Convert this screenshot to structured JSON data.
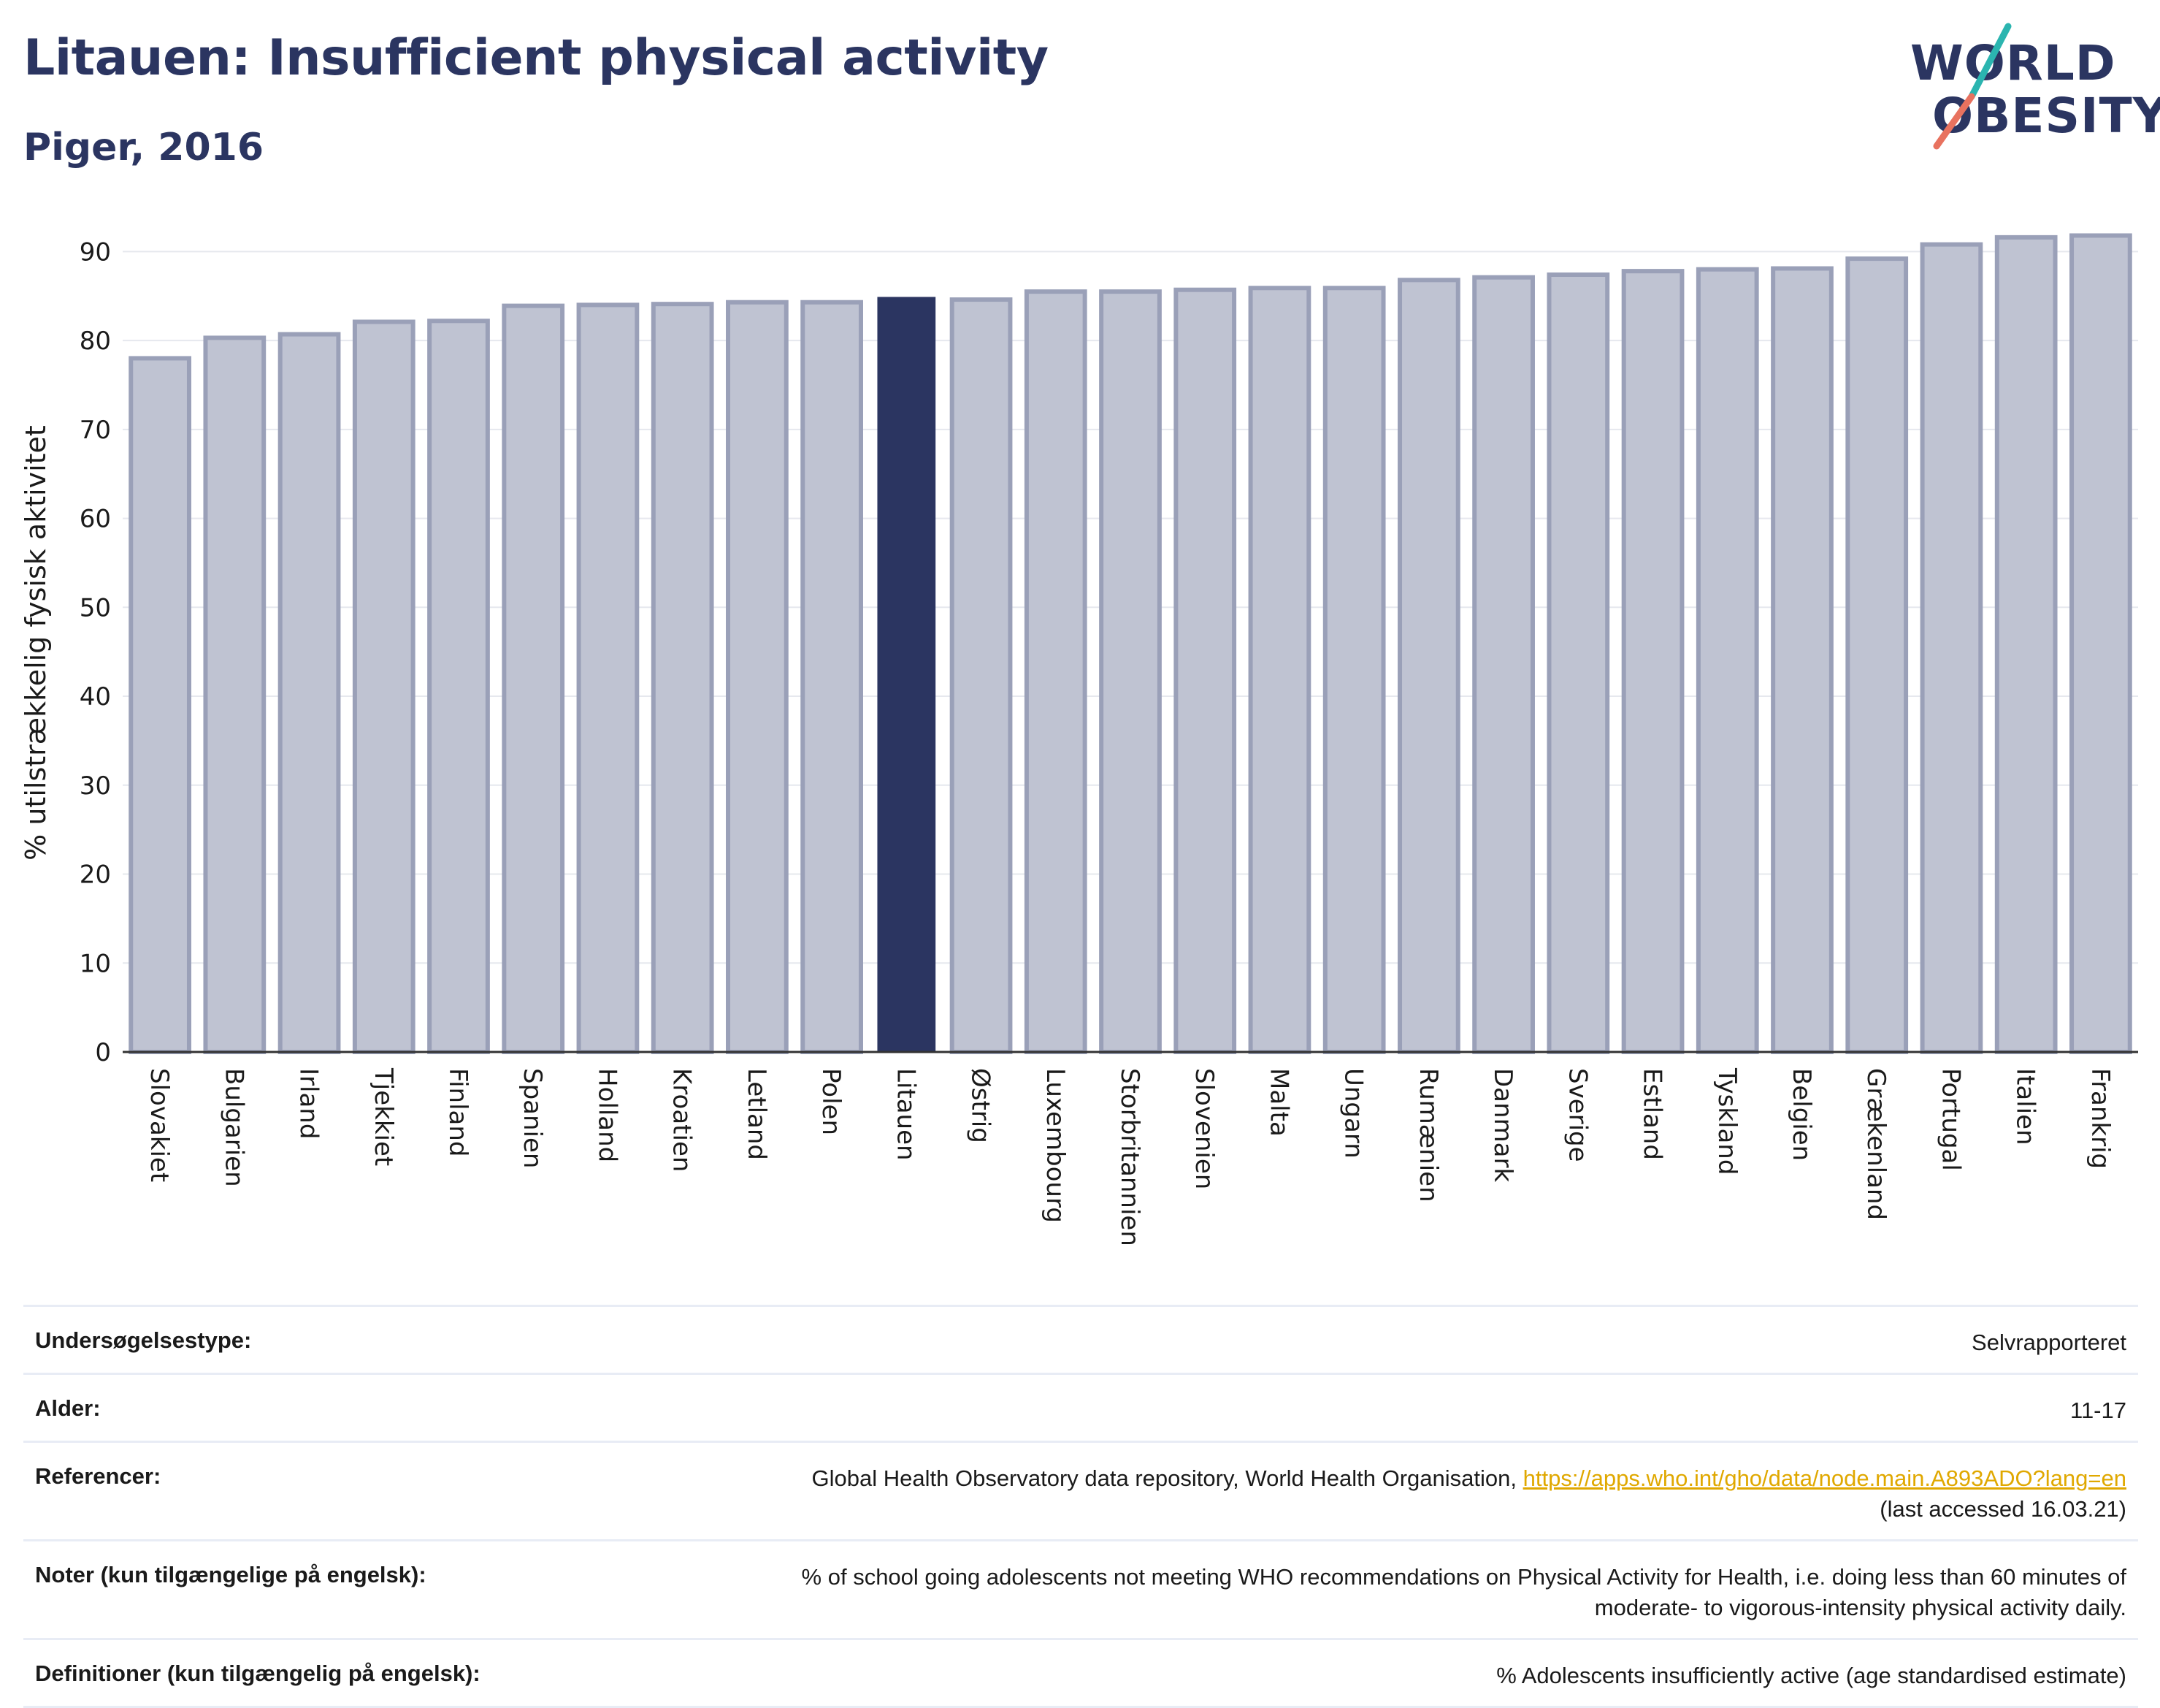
{
  "header": {
    "title": "Litauen: Insufficient physical activity",
    "subtitle": "Piger, 2016"
  },
  "logo": {
    "line1": "WORLD",
    "line2": "OBESITY",
    "accent_teal": "#2bb5b0",
    "accent_coral": "#e8725f"
  },
  "colors": {
    "bar": "#bfc3d2",
    "bar_border": "#9aa0b8",
    "highlight": "#2b3561",
    "grid": "#e6e8ee",
    "axis_text": "#1a1a1a"
  },
  "chart_data": {
    "type": "bar",
    "ylabel": "% utilstrækkelig fysisk aktivitet",
    "ylim": [
      0,
      92
    ],
    "yticks": [
      0,
      10,
      20,
      30,
      40,
      50,
      60,
      70,
      80,
      90
    ],
    "grid": true,
    "highlight": "Litauen",
    "categories": [
      "Slovakiet",
      "Bulgarien",
      "Irland",
      "Tjekkiet",
      "Finland",
      "Spanien",
      "Holland",
      "Kroatien",
      "Letland",
      "Polen",
      "Litauen",
      "Østrig",
      "Luxembourg",
      "Storbritannien",
      "Slovenien",
      "Malta",
      "Ungarn",
      "Rumænien",
      "Danmark",
      "Sverige",
      "Estland",
      "Tyskland",
      "Belgien",
      "Grækenland",
      "Portugal",
      "Italien",
      "Frankrig"
    ],
    "values": [
      78.0,
      80.3,
      80.7,
      82.1,
      82.2,
      83.9,
      84.0,
      84.1,
      84.3,
      84.3,
      84.9,
      84.6,
      85.5,
      85.5,
      85.7,
      85.9,
      85.9,
      86.8,
      87.1,
      87.4,
      87.8,
      88.0,
      88.1,
      89.2,
      90.8,
      91.6,
      91.8
    ]
  },
  "meta": [
    {
      "key": "Undersøgelsestype:",
      "value": "Selvrapporteret"
    },
    {
      "key": "Alder:",
      "value": "11-17"
    },
    {
      "key": "Referencer:",
      "value": "Global Health Observatory data repository, World Health Organisation, ",
      "link": "https://apps.who.int/gho/data/node.main.A893ADO?lang=en",
      "value2": "(last accessed 16.03.21)"
    },
    {
      "key": "Noter (kun tilgængelige på engelsk):",
      "value": "% of school going adolescents not meeting WHO recommendations on Physical Activity for Health, i.e. doing less than 60 minutes of",
      "value2": "moderate- to vigorous-intensity physical activity daily."
    },
    {
      "key": "Definitioner (kun tilgængelig på engelsk):",
      "value": "% Adolescents insufficiently active (age standardised estimate)"
    }
  ]
}
